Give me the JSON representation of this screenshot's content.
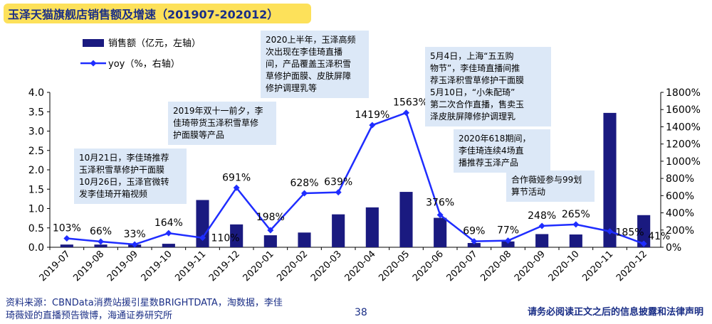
{
  "header": {
    "title": "玉泽天猫旗舰店销售额及增速（201907-202012）"
  },
  "chart_data": {
    "type": "bar+line",
    "categories": [
      "2019-07",
      "2019-08",
      "2019-09",
      "2019-10",
      "2019-11",
      "2019-12",
      "2020-01",
      "2020-02",
      "2020-03",
      "2020-04",
      "2020-05",
      "2020-06",
      "2020-07",
      "2020-08",
      "2020-09",
      "2020-10",
      "2020-11",
      "2020-12"
    ],
    "series": [
      {
        "name": "销售额（亿元，左轴）",
        "type": "bar",
        "axis": "left",
        "values": [
          0.07,
          0.07,
          0.07,
          0.09,
          1.22,
          0.59,
          0.31,
          0.38,
          0.85,
          1.03,
          1.43,
          0.76,
          0.11,
          0.15,
          0.34,
          0.33,
          3.47,
          0.83
        ]
      },
      {
        "name": "yoy（%，右轴）",
        "type": "line",
        "axis": "right",
        "values": [
          103,
          66,
          33,
          164,
          110,
          691,
          198,
          628,
          639,
          1419,
          1563,
          376,
          69,
          77,
          248,
          265,
          185,
          41
        ]
      }
    ],
    "data_labels": [
      "103%",
      "66%",
      "33%",
      "164%",
      "110%",
      "691%",
      "198%",
      "628%",
      "639%",
      "1419%",
      "1563%",
      "376%",
      "69%",
      "77%",
      "248%",
      "265%",
      "185%",
      "41%"
    ],
    "left_axis": {
      "ylim": [
        0,
        4.0
      ],
      "ticks": [
        "0.0",
        "0.5",
        "1.0",
        "1.5",
        "2.0",
        "2.5",
        "3.0",
        "3.5",
        "4.0"
      ]
    },
    "right_axis": {
      "ylim": [
        0,
        1800
      ],
      "ticks": [
        "0%",
        "200%",
        "400%",
        "600%",
        "800%",
        "1000%",
        "1200%",
        "1400%",
        "1600%",
        "1800%"
      ]
    },
    "legend_position": "top-left",
    "colors": {
      "bar": "#1a1a80",
      "line": "#1f2dff",
      "annotation_bg": "#dce8f7",
      "title_bg": "#fde15a",
      "title_text": "#1a2e86"
    }
  },
  "annotations": [
    {
      "text": "10月21日，李佳琦推荐\n玉泽积雪草修护干面膜\n10月26日，玉泽官微转\n发李佳琦开箱视频"
    },
    {
      "text": "2019年双十一前夕，李\n佳琦带货玉泽积雪草修\n护面膜等产品"
    },
    {
      "text": "2020上半年，玉泽高频\n次出现在李佳琦直播\n间，产品覆盖玉泽积雪\n草修护面膜、皮肤屏障\n修护调理乳等"
    },
    {
      "text": "5月4日，上海“五五购\n物节”，李佳琦直播间推\n荐玉泽积雪草修护干面膜\n5月10日，“小朱配琦”\n第二次合作直播，售卖玉\n泽皮肤屏障修护调理乳"
    },
    {
      "text": "2020年618期间，\n李佳琦连续4场直\n播推荐玉泽产品"
    },
    {
      "text": "合作薇娅参与99划\n算节活动"
    }
  ],
  "footer": {
    "source": "资料来源：CBNData消费站援引星数BRIGHTDATA，淘数据，李佳\n琦薇娅的直播预告微博，海通证券研究所",
    "page": "38",
    "disclaimer": "请务必阅读正文之后的信息披露和法律声明"
  }
}
